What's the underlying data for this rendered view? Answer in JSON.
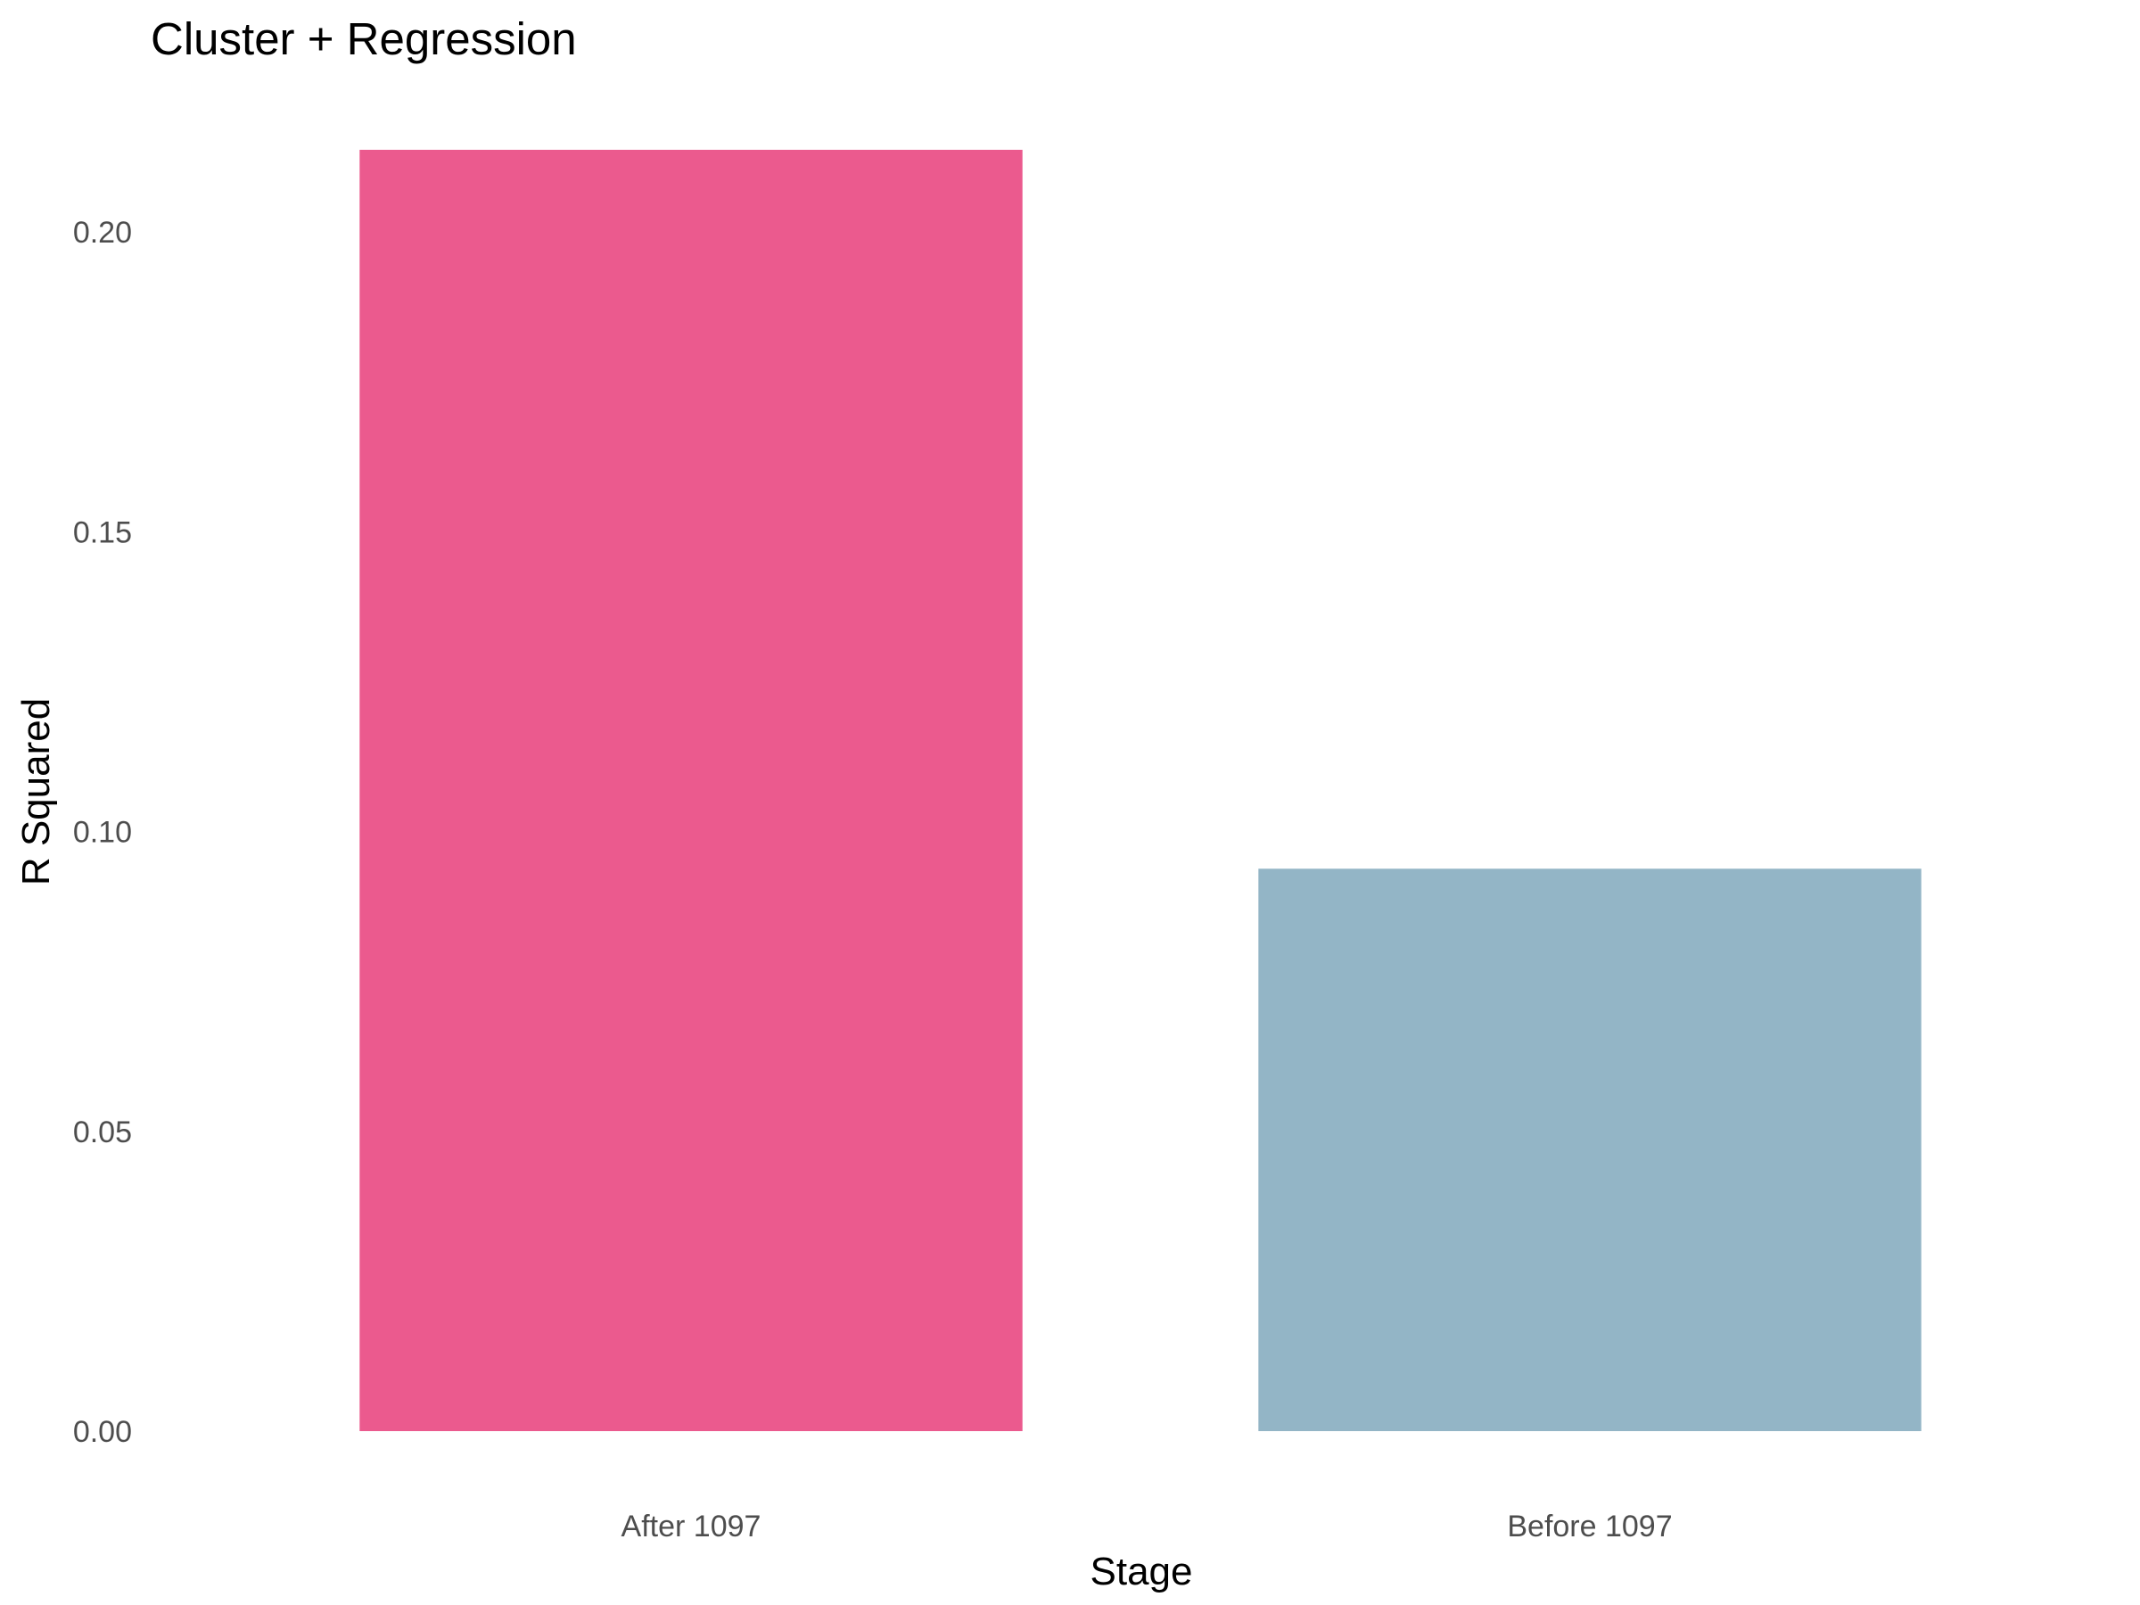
{
  "chart_data": {
    "type": "bar",
    "title": "Cluster + Regression",
    "xlabel": "Stage",
    "ylabel": "R Squared",
    "categories": [
      "After 1097",
      "Before 1097"
    ],
    "values": [
      0.2137,
      0.0938
    ],
    "colors": [
      "#EB5A8E",
      "#93B5C6"
    ],
    "ylim": [
      0,
      0.2137
    ],
    "yticks": [
      0.0,
      0.05,
      0.1,
      0.15,
      0.2
    ],
    "ytick_labels": [
      "0.00",
      "0.05",
      "0.10",
      "0.15",
      "0.20"
    ],
    "grid": false,
    "legend": "none"
  }
}
